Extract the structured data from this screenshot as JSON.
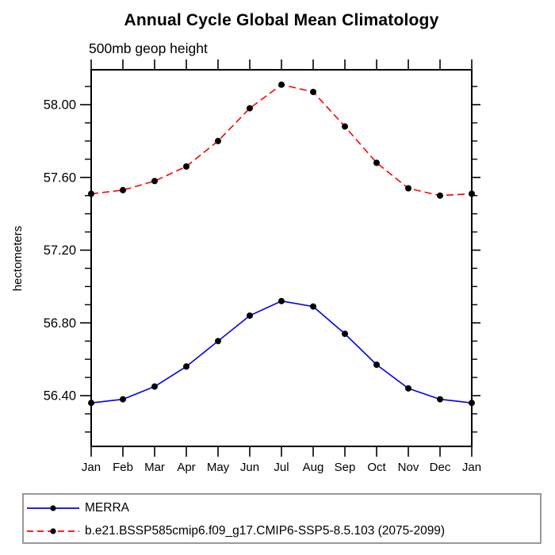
{
  "page": {
    "title": "Annual Cycle Global Mean Climatology",
    "subtitle": "500mb geop height"
  },
  "chart": {
    "ylabel": "hectometers"
  },
  "chart_data": {
    "type": "line",
    "title": "Annual Cycle Global Mean Climatology",
    "subtitle": "500mb geop height",
    "ylabel": "hectometers",
    "xlabel": "",
    "categories": [
      "Jan",
      "Feb",
      "Mar",
      "Apr",
      "May",
      "Jun",
      "Jul",
      "Aug",
      "Sep",
      "Oct",
      "Nov",
      "Dec",
      "Jan"
    ],
    "series": [
      {
        "name": "MERRA",
        "color": "#0000ee",
        "line_style": "solid",
        "marker": "filled-circle",
        "marker_color": "#000000",
        "values": [
          56.36,
          56.38,
          56.45,
          56.56,
          56.7,
          56.84,
          56.92,
          56.89,
          56.74,
          56.57,
          56.44,
          56.38,
          56.36
        ]
      },
      {
        "name": "b.e21.BSSP585cmip6.f09_g17.CMIP6-SSP5-8.5.103 (2075-2099)",
        "color": "#ff0000",
        "line_style": "dashed",
        "marker": "filled-circle",
        "marker_color": "#000000",
        "values": [
          57.51,
          57.53,
          57.58,
          57.66,
          57.8,
          57.98,
          58.11,
          58.07,
          57.88,
          57.68,
          57.54,
          57.5,
          57.51
        ]
      }
    ],
    "y_axis": {
      "major_ticks": [
        56.4,
        56.8,
        57.2,
        57.6,
        58.0
      ],
      "minor_tick_step": 0.1,
      "range": [
        56.12,
        58.19
      ],
      "label_format": "2-decimals"
    },
    "x_axis": {
      "ticks": [
        "Jan",
        "Feb",
        "Mar",
        "Apr",
        "May",
        "Jun",
        "Jul",
        "Aug",
        "Sep",
        "Oct",
        "Nov",
        "Dec",
        "Jan"
      ],
      "minor_ticks": "none"
    },
    "grid": "off",
    "legend_position": "bottom-left"
  },
  "legend": {
    "items": [
      {
        "label": "MERRA",
        "color": "#0000ee",
        "style": "solid"
      },
      {
        "label": "b.e21.BSSP585cmip6.f09_g17.CMIP6-SSP5-8.5.103 (2075-2099)",
        "color": "#ff0000",
        "style": "dashed"
      }
    ]
  }
}
